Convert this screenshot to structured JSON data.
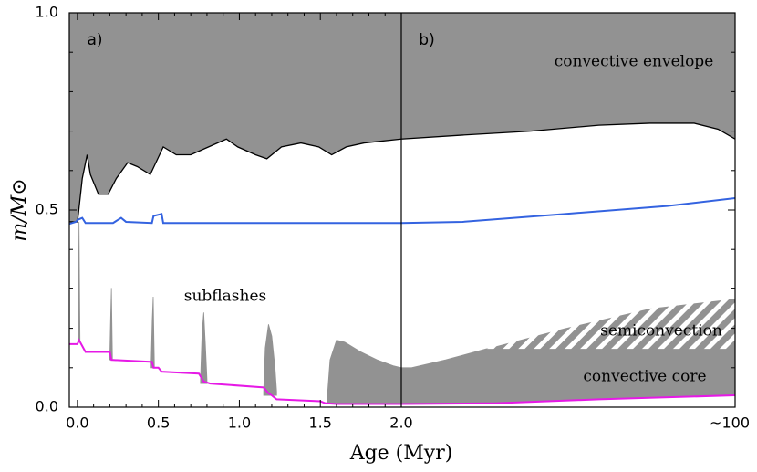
{
  "chart_data": {
    "type": "area",
    "xlabel": "Age (Myr)",
    "ylabel": "m/M⊙",
    "ylim": [
      0,
      1.0
    ],
    "yticks": [
      {
        "value": 0,
        "label": "0.0"
      },
      0.5,
      {
        "value": 1.0,
        "label": "1.0"
      }
    ],
    "yminorticks": [
      0.1,
      0.2,
      0.3,
      0.4,
      0.6,
      0.7,
      0.8,
      0.9
    ],
    "annotations": [
      "convective envelope",
      "semiconvection",
      "convective core",
      "subflashes"
    ],
    "panels": [
      {
        "label": "a)",
        "xlim": [
          -0.05,
          2.0
        ],
        "xticks": [
          {
            "value": 0,
            "label": "0.0"
          },
          0.5,
          {
            "value": 1.0,
            "label": "1.0"
          },
          1.5
        ],
        "xminorticks": [
          0.1,
          0.2,
          0.3,
          0.4,
          0.6,
          0.7,
          0.8,
          0.9,
          1.1,
          1.2,
          1.3,
          1.4,
          1.6,
          1.7,
          1.8,
          1.9
        ],
        "regions": [
          {
            "fill": "#929292",
            "x": [
              0.004,
              0.01,
              0.016
            ],
            "lower": [
              0.17,
              0.17,
              0.17
            ],
            "upper": [
              0.17,
              0.47,
              0.17
            ]
          },
          {
            "fill": "#929292",
            "x": [
              0.2,
              0.206,
              0.21,
              0.216
            ],
            "lower": [
              0.12,
              0.12,
              0.12,
              0.12
            ],
            "upper": [
              0.13,
              0.24,
              0.3,
              0.13
            ]
          },
          {
            "fill": "#929292",
            "x": [
              0.455,
              0.462,
              0.468,
              0.475
            ],
            "lower": [
              0.1,
              0.1,
              0.1,
              0.1
            ],
            "upper": [
              0.11,
              0.22,
              0.28,
              0.11
            ]
          },
          {
            "fill": "#929292",
            "x": [
              0.76,
              0.77,
              0.78,
              0.79,
              0.8
            ],
            "lower": [
              0.06,
              0.06,
              0.06,
              0.06,
              0.06
            ],
            "upper": [
              0.07,
              0.19,
              0.24,
              0.16,
              0.07
            ]
          },
          {
            "fill": "#929292",
            "x": [
              1.15,
              1.16,
              1.18,
              1.2,
              1.22,
              1.23
            ],
            "lower": [
              0.03,
              0.03,
              0.03,
              0.03,
              0.03,
              0.03
            ],
            "upper": [
              0.04,
              0.15,
              0.21,
              0.18,
              0.1,
              0.04
            ]
          },
          {
            "fill": "#929292",
            "x": [
              1.54,
              1.56,
              1.6,
              1.65,
              1.75,
              1.85,
              1.95,
              2.0
            ],
            "lower": [
              0.01,
              0.01,
              0.008,
              0.008,
              0.008,
              0.008,
              0.008,
              0.008
            ],
            "upper": [
              0.01,
              0.12,
              0.17,
              0.165,
              0.14,
              0.12,
              0.105,
              0.1
            ]
          }
        ],
        "series": [
          {
            "color": "#000000",
            "fill": "#929292",
            "x": [
              -0.05,
              0.0,
              0.006,
              0.03,
              0.06,
              0.08,
              0.13,
              0.19,
              0.24,
              0.31,
              0.37,
              0.45,
              0.53,
              0.61,
              0.7,
              0.81,
              0.92,
              0.99,
              1.1,
              1.17,
              1.26,
              1.38,
              1.49,
              1.57,
              1.66,
              1.77,
              2.0
            ],
            "values": [
              0.47,
              0.47,
              0.49,
              0.58,
              0.64,
              0.59,
              0.54,
              0.54,
              0.58,
              0.62,
              0.61,
              0.59,
              0.66,
              0.64,
              0.64,
              0.66,
              0.68,
              0.66,
              0.64,
              0.63,
              0.66,
              0.67,
              0.66,
              0.64,
              0.66,
              0.67,
              0.68
            ]
          },
          {
            "color": "#3463e0",
            "x": [
              -0.05,
              -0.01,
              0.0,
              0.03,
              0.05,
              0.22,
              0.25,
              0.27,
              0.3,
              0.46,
              0.47,
              0.52,
              0.53,
              2.0
            ],
            "values": [
              0.465,
              0.47,
              0.475,
              0.48,
              0.467,
              0.467,
              0.475,
              0.48,
              0.47,
              0.467,
              0.485,
              0.49,
              0.467,
              0.467
            ]
          },
          {
            "color": "#e619e6",
            "x": [
              -0.05,
              0.0,
              0.01,
              0.03,
              0.05,
              0.2,
              0.21,
              0.46,
              0.47,
              0.5,
              0.52,
              0.75,
              0.78,
              0.82,
              1.15,
              1.18,
              1.2,
              1.23,
              1.5,
              1.53,
              1.6,
              2.0
            ],
            "values": [
              0.16,
              0.16,
              0.17,
              0.155,
              0.14,
              0.14,
              0.12,
              0.115,
              0.1,
              0.1,
              0.09,
              0.085,
              0.065,
              0.06,
              0.05,
              0.035,
              0.03,
              0.02,
              0.015,
              0.01,
              0.008,
              0.008
            ]
          }
        ]
      },
      {
        "label": "b)",
        "xlim": [
          2.0,
          100
        ],
        "xticks": [
          {
            "value": 2.0,
            "label": "2.0"
          },
          {
            "value": 100,
            "label": "~100"
          }
        ],
        "regions": [
          {
            "fill": "#929292",
            "x": [
              2,
              5,
              15,
              27,
              60,
              100
            ],
            "lower": [
              0.008,
              0.008,
              0.009,
              0.01,
              0.02,
              0.03
            ],
            "upper": [
              0.1,
              0.1,
              0.12,
              0.148,
              0.148,
              0.148
            ]
          },
          {
            "fill": "hatch",
            "x": [
              27,
              50,
              75,
              100
            ],
            "lower": [
              0.148,
              0.148,
              0.148,
              0.148
            ],
            "upper": [
              0.148,
              0.2,
              0.25,
              0.275
            ]
          }
        ],
        "series": [
          {
            "color": "#000000",
            "fill": "#929292",
            "x": [
              2,
              20,
              40,
              60,
              75,
              88,
              95,
              100
            ],
            "values": [
              0.68,
              0.69,
              0.7,
              0.715,
              0.72,
              0.72,
              0.705,
              0.68
            ]
          },
          {
            "color": "#3463e0",
            "x": [
              2,
              20,
              50,
              80,
              100
            ],
            "values": [
              0.467,
              0.47,
              0.49,
              0.51,
              0.53
            ]
          },
          {
            "color": "#e619e6",
            "x": [
              2,
              30,
              60,
              100
            ],
            "values": [
              0.008,
              0.01,
              0.02,
              0.03
            ]
          }
        ]
      }
    ]
  }
}
